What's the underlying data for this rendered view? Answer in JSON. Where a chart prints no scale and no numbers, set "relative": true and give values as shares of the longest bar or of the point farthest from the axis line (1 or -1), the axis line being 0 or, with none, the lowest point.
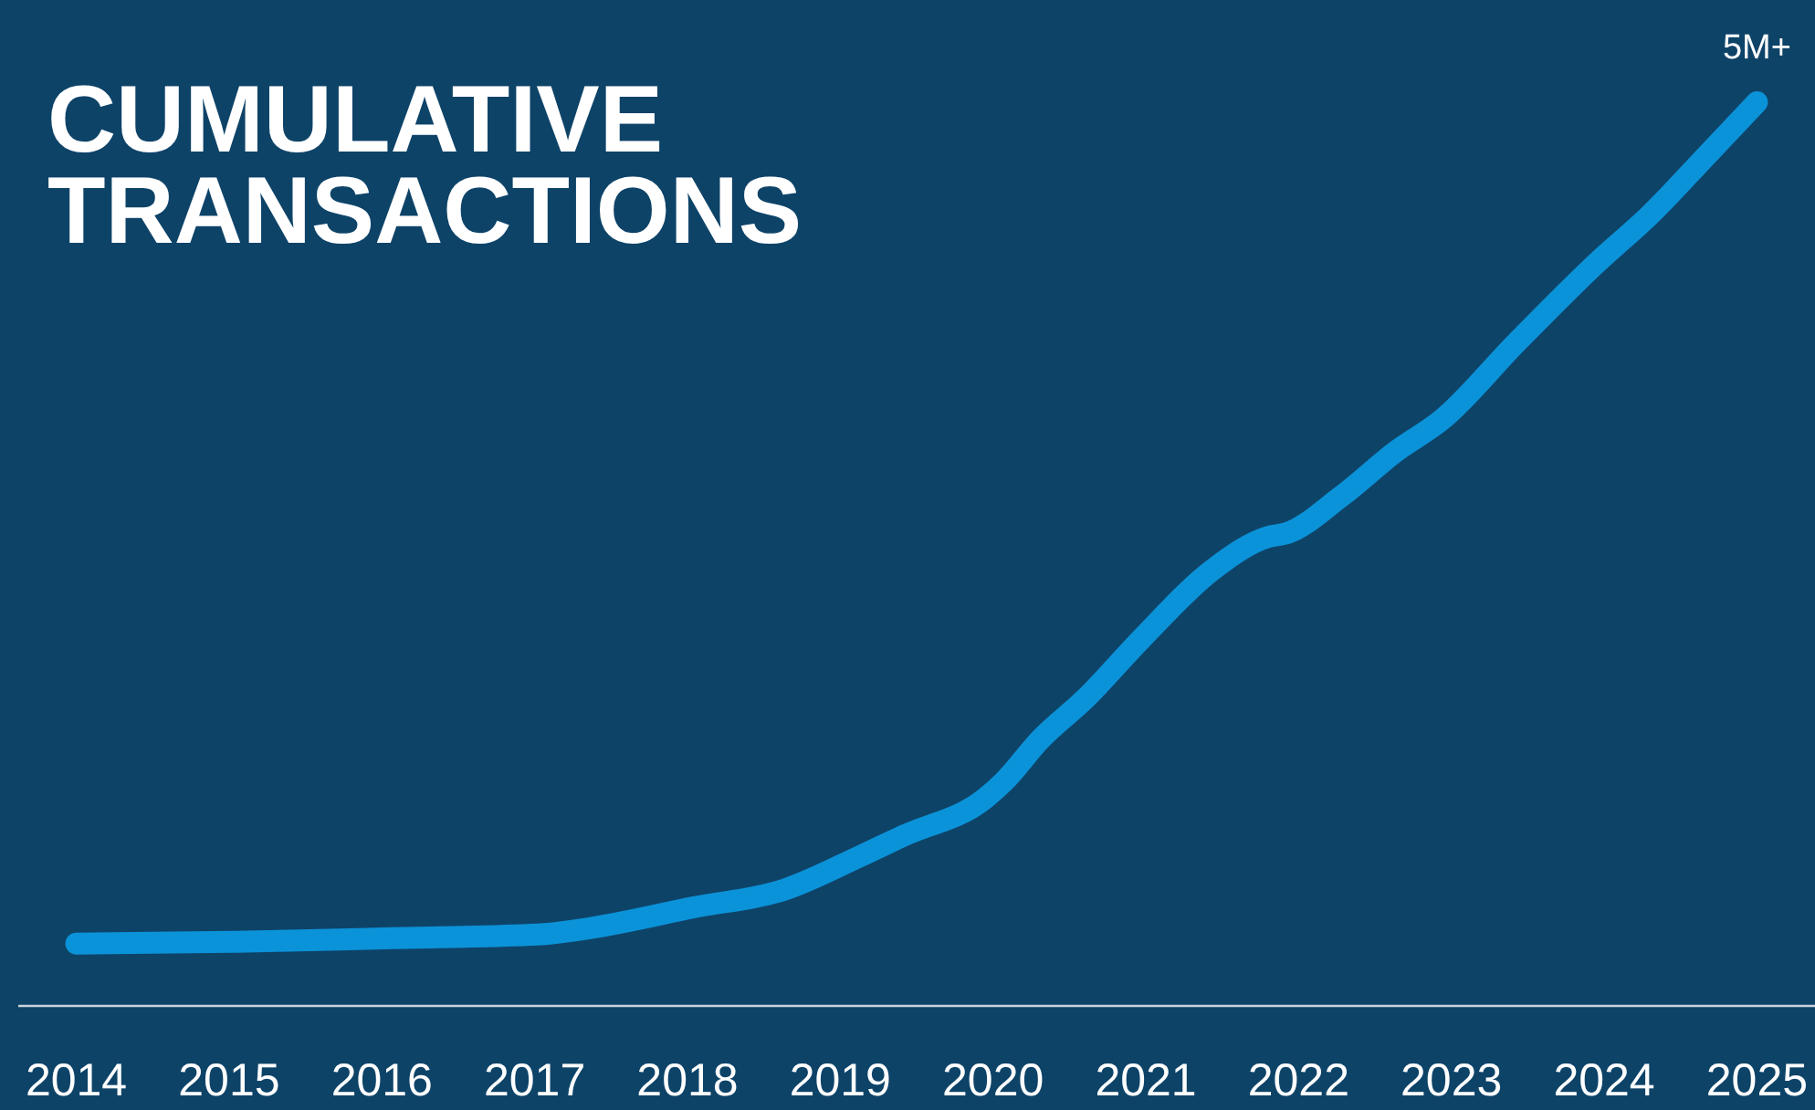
{
  "chart_data": {
    "type": "line",
    "title": "CUMULATIVE TRANSACTIONS",
    "relative": true,
    "x": [
      2014,
      2015.05,
      2016.07,
      2017.02,
      2017.32,
      2018.04,
      2018.64,
      2019.11,
      2019.41,
      2019.95,
      2020.07,
      2020.31,
      2020.61,
      2020.97,
      2021.44,
      2021.8,
      2021.92,
      2022.28,
      2022.64,
      2022.94,
      2023.42,
      2023.95,
      2024.31,
      2024.67,
      2025
    ],
    "series": [
      {
        "color": "#0b93d9",
        "values": [
          0.069,
          0.071,
          0.075,
          0.079,
          0.085,
          0.109,
          0.129,
          0.164,
          0.188,
          0.23,
          0.248,
          0.295,
          0.341,
          0.406,
          0.483,
          0.519,
          0.523,
          0.564,
          0.614,
          0.649,
          0.733,
          0.822,
          0.877,
          0.941,
          1
        ]
      }
    ],
    "xlim": [
      2013.62,
      2025.38
    ],
    "xticks": [
      2014,
      2015,
      2016,
      2017,
      2018,
      2019,
      2020,
      2021,
      2022,
      2023,
      2024,
      2025
    ],
    "annotations": [
      {
        "text": "5M+",
        "x": 2025,
        "y": 1
      }
    ],
    "grid": false
  }
}
